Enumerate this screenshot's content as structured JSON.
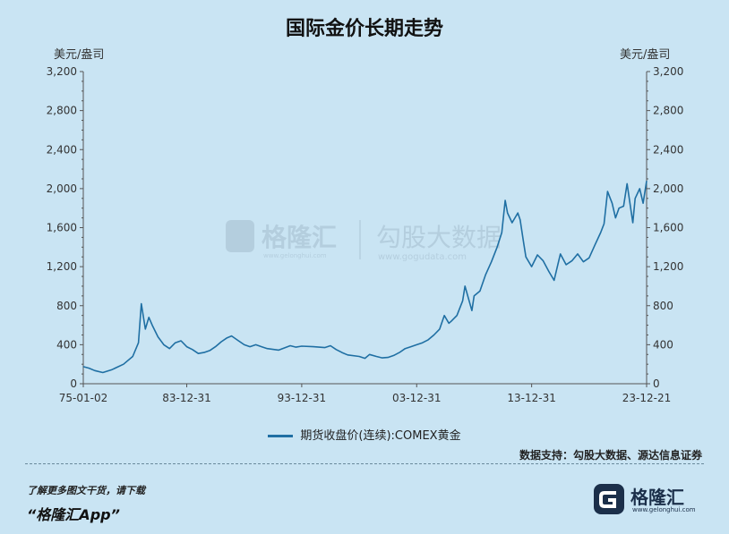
{
  "chart_data": {
    "type": "line",
    "title": "国际金价长期走势",
    "ylabel_left": "美元/盎司",
    "ylabel_right": "美元/盎司",
    "ylim": [
      0,
      3200
    ],
    "yticks": [
      0,
      400,
      800,
      1200,
      1600,
      2000,
      2400,
      2800,
      3200
    ],
    "ytick_labels": [
      "0",
      "400",
      "800",
      "1,200",
      "1,600",
      "2,000",
      "2,400",
      "2,800",
      "3,200"
    ],
    "xlim": [
      1975.0,
      2024.0
    ],
    "xticks": [
      1975.0,
      1984.0,
      1994.0,
      2004.0,
      2014.0,
      2024.0
    ],
    "xtick_labels": [
      "75-01-02",
      "83-12-31",
      "93-12-31",
      "03-12-31",
      "13-12-31",
      "23-12-21"
    ],
    "series": [
      {
        "name": "期货收盘价(连续):COMEX黄金",
        "color": "#1f6fa3",
        "x": [
          1975.0,
          1975.5,
          1976.0,
          1976.7,
          1977.5,
          1978.5,
          1979.3,
          1979.8,
          1980.05,
          1980.4,
          1980.7,
          1981.0,
          1981.5,
          1982.0,
          1982.5,
          1983.0,
          1983.5,
          1984.0,
          1984.5,
          1985.0,
          1985.5,
          1986.0,
          1986.5,
          1987.0,
          1987.5,
          1987.9,
          1988.5,
          1989.0,
          1989.5,
          1990.0,
          1990.5,
          1991.0,
          1992.0,
          1993.0,
          1993.5,
          1994.0,
          1995.0,
          1996.0,
          1996.5,
          1997.0,
          1997.5,
          1998.0,
          1999.0,
          1999.5,
          1999.9,
          2000.5,
          2001.0,
          2001.5,
          2002.0,
          2002.5,
          2003.0,
          2003.5,
          2004.0,
          2004.5,
          2005.0,
          2005.5,
          2006.0,
          2006.4,
          2006.8,
          2007.0,
          2007.5,
          2008.0,
          2008.2,
          2008.8,
          2009.0,
          2009.5,
          2010.0,
          2010.5,
          2011.0,
          2011.4,
          2011.7,
          2011.9,
          2012.3,
          2012.8,
          2013.0,
          2013.3,
          2013.5,
          2014.0,
          2014.5,
          2015.0,
          2015.5,
          2015.95,
          2016.5,
          2017.0,
          2017.5,
          2018.0,
          2018.5,
          2019.0,
          2019.5,
          2020.0,
          2020.3,
          2020.6,
          2021.0,
          2021.3,
          2021.6,
          2022.0,
          2022.3,
          2022.8,
          2023.0,
          2023.4,
          2023.7,
          2024.0
        ],
        "values": [
          175,
          160,
          135,
          115,
          145,
          200,
          280,
          420,
          820,
          560,
          680,
          600,
          480,
          400,
          360,
          420,
          440,
          380,
          350,
          310,
          320,
          340,
          380,
          430,
          470,
          490,
          440,
          400,
          380,
          400,
          380,
          360,
          345,
          390,
          375,
          385,
          380,
          370,
          390,
          350,
          320,
          295,
          280,
          260,
          300,
          280,
          265,
          270,
          290,
          320,
          360,
          380,
          400,
          420,
          450,
          500,
          560,
          700,
          620,
          640,
          700,
          850,
          1000,
          750,
          900,
          950,
          1120,
          1250,
          1400,
          1550,
          1880,
          1750,
          1650,
          1750,
          1680,
          1450,
          1300,
          1200,
          1320,
          1260,
          1150,
          1060,
          1330,
          1220,
          1260,
          1330,
          1250,
          1290,
          1420,
          1550,
          1640,
          1970,
          1850,
          1700,
          1800,
          1820,
          2050,
          1650,
          1900,
          2000,
          1850,
          2080
        ]
      }
    ],
    "legend_position": "bottom",
    "grid": false
  },
  "units": {
    "left": "美元/盎司",
    "right": "美元/盎司"
  },
  "legend": {
    "label": "期货收盘价(连续):COMEX黄金"
  },
  "source": "数据支持：勾股大数据、源达信息证券",
  "watermark": {
    "brand": "格隆汇",
    "brand_url": "www.gelonghui.com",
    "brand2": "勾股大数据",
    "brand2_url": "www.gogudata.com"
  },
  "footer": {
    "cta": "了解更多图文干货，请下载",
    "app": "“格隆汇App”",
    "logo_text": "格隆汇",
    "logo_url": "www.gelonghui.com"
  }
}
